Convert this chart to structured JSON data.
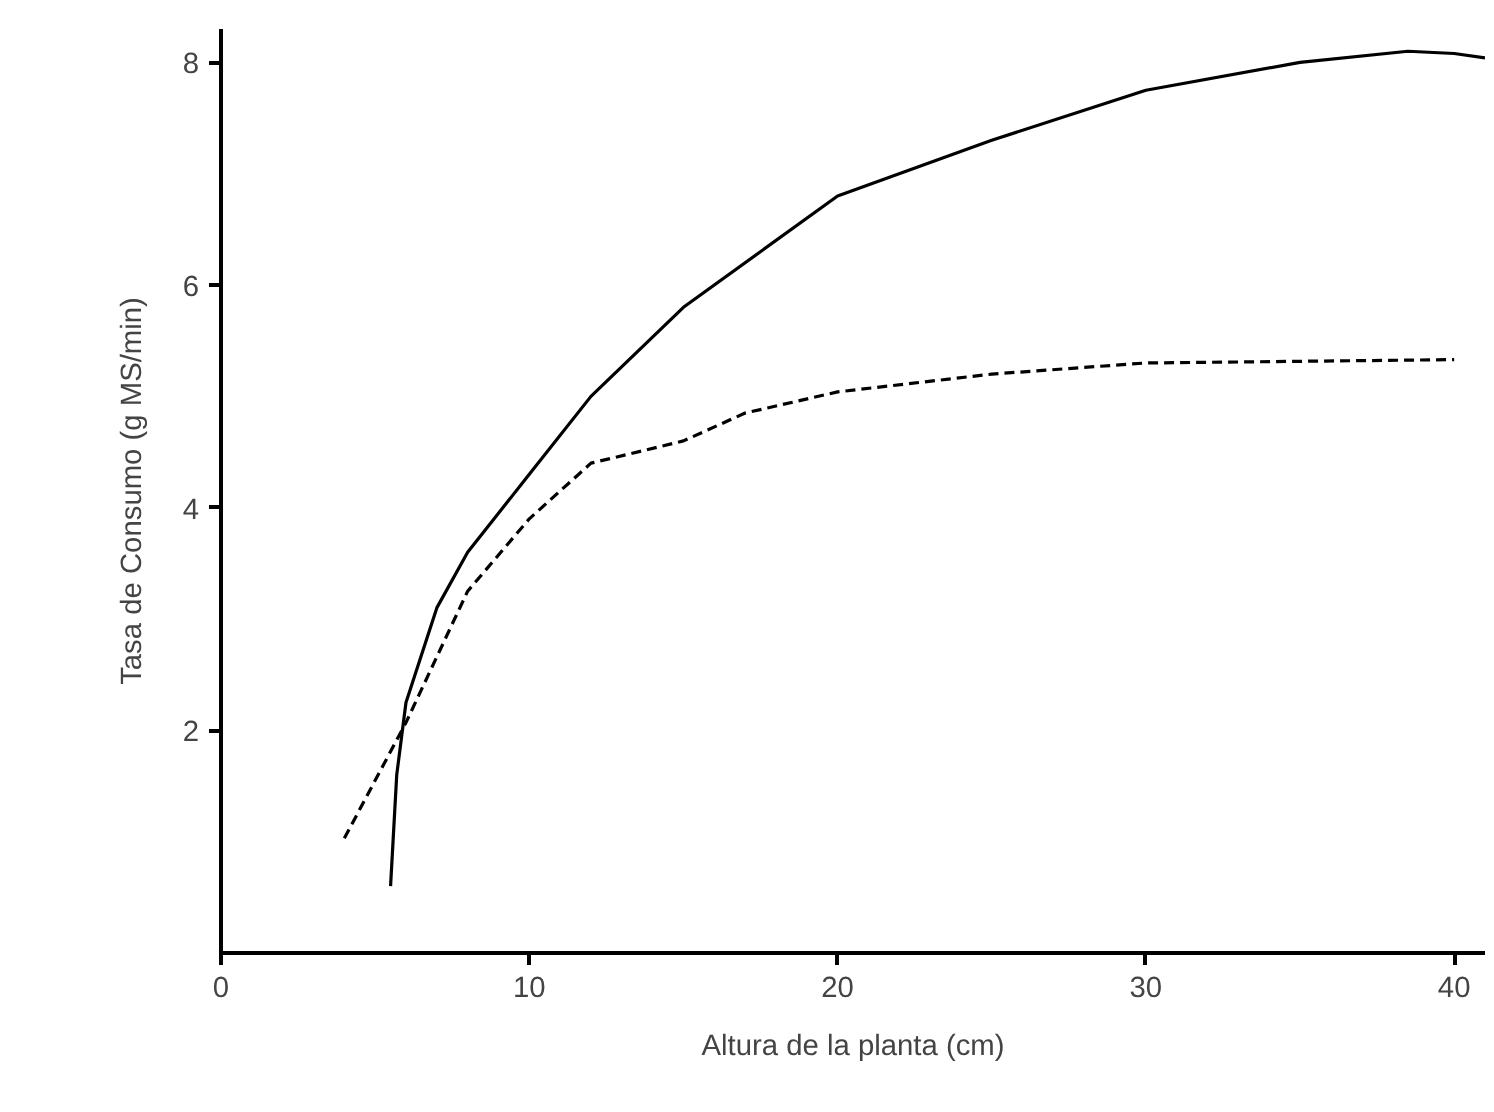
{
  "chart_data": {
    "type": "line",
    "xlabel": "Altura de la planta (cm)",
    "ylabel": "Tasa de Consumo (g MS/min)",
    "xlim": [
      0,
      41
    ],
    "ylim": [
      0,
      8.3
    ],
    "xticks": [
      0,
      10,
      20,
      30,
      40
    ],
    "yticks": [
      2,
      4,
      6,
      8
    ],
    "grid": false,
    "series": [
      {
        "color": "#000000",
        "line_style": "solid",
        "x": [
          5.5,
          5.7,
          6,
          7,
          8,
          10,
          12,
          15,
          20,
          25,
          30,
          35,
          38.5,
          40,
          41
        ],
        "values": [
          0.6,
          1.6,
          2.25,
          3.1,
          3.6,
          4.3,
          5.0,
          5.8,
          6.8,
          7.3,
          7.75,
          8.0,
          8.1,
          8.08,
          8.04
        ]
      },
      {
        "color": "#000000",
        "line_style": "dashed",
        "x": [
          4,
          6,
          8,
          10,
          12,
          15,
          17,
          20,
          25,
          30,
          40
        ],
        "values": [
          1.03,
          2.07,
          3.25,
          3.9,
          4.4,
          4.6,
          4.85,
          5.04,
          5.2,
          5.3,
          5.33
        ]
      }
    ]
  }
}
